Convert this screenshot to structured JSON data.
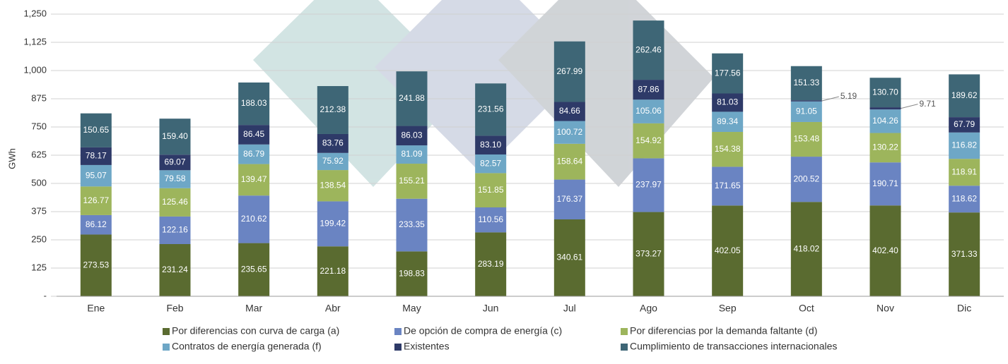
{
  "chart_data": {
    "type": "stacked_bar",
    "y_label": "GWh",
    "categories": [
      "Ene",
      "Feb",
      "Mar",
      "Abr",
      "May",
      "Jun",
      "Jul",
      "Ago",
      "Sep",
      "Oct",
      "Nov",
      "Dic"
    ],
    "ylim": [
      0,
      1250
    ],
    "yticks": [
      {
        "value": 0,
        "label": "-"
      },
      125,
      250,
      375,
      500,
      625,
      750,
      875,
      {
        "value": 1000,
        "label": "1,000"
      },
      {
        "value": 1125,
        "label": "1,125"
      },
      {
        "value": 1250,
        "label": "1,250"
      }
    ],
    "grid": true,
    "series": [
      {
        "name": "Por diferencias con curva de carga (a)",
        "color": "#5a6b30",
        "values": [
          273.53,
          231.24,
          235.65,
          221.18,
          198.83,
          283.19,
          340.61,
          373.27,
          402.05,
          418.02,
          402.4,
          371.33
        ],
        "value_labels": [
          "273.53",
          "231.24",
          "235.65",
          "221.18",
          "198.83",
          "283.19",
          "340.61",
          "373.27",
          "402.05",
          "418.02",
          "402.40",
          "371.33"
        ]
      },
      {
        "name": "De opción de compra de energía (c)",
        "color": "#6a84c2",
        "values": [
          86.12,
          122.16,
          210.62,
          199.42,
          233.35,
          110.56,
          176.37,
          237.97,
          171.65,
          200.52,
          190.71,
          118.62
        ],
        "value_labels": [
          "86.12",
          "122.16",
          "210.62",
          "199.42",
          "233.35",
          "110.56",
          "176.37",
          "237.97",
          "171.65",
          "200.52",
          "190.71",
          "118.62"
        ]
      },
      {
        "name": "Por diferencias por la demanda faltante (d)",
        "color": "#9db55c",
        "values": [
          126.77,
          125.46,
          139.47,
          138.54,
          155.21,
          151.85,
          158.64,
          154.92,
          154.38,
          153.48,
          130.22,
          118.91
        ],
        "value_labels": [
          "126.77",
          "125.46",
          "139.47",
          "138.54",
          "155.21",
          "151.85",
          "158.64",
          "154.92",
          "154.38",
          "153.48",
          "130.22",
          "118.91"
        ]
      },
      {
        "name": "Contratos de energía generada (f)",
        "color": "#6ea7c6",
        "values": [
          95.07,
          79.58,
          86.79,
          75.92,
          81.09,
          82.57,
          100.72,
          105.06,
          89.34,
          91.05,
          104.26,
          116.82
        ],
        "value_labels": [
          "95.07",
          "79.58",
          "86.79",
          "75.92",
          "81.09",
          "82.57",
          "100.72",
          "105.06",
          "89.34",
          "91.05",
          "104.26",
          "116.82"
        ]
      },
      {
        "name": "Existentes",
        "color": "#2e3a68",
        "values": [
          78.17,
          69.07,
          86.45,
          83.76,
          86.03,
          83.1,
          84.66,
          87.86,
          81.03,
          5.19,
          9.71,
          67.79
        ],
        "value_labels": [
          "78.17",
          "69.07",
          "86.45",
          "83.76",
          "86.03",
          "83.10",
          "84.66",
          "87.86",
          "81.03",
          "5.19",
          "9.71",
          "67.79"
        ]
      },
      {
        "name": "Cumplimiento de transacciones internacionales",
        "color": "#3e6676",
        "values": [
          150.65,
          159.4,
          188.03,
          212.38,
          241.88,
          231.56,
          267.99,
          262.46,
          177.56,
          151.33,
          130.7,
          189.62
        ],
        "value_labels": [
          "150.65",
          "159.40",
          "188.03",
          "212.38",
          "241.88",
          "231.56",
          "267.99",
          "262.46",
          "177.56",
          "151.33",
          "130.70",
          "189.62"
        ]
      }
    ]
  }
}
